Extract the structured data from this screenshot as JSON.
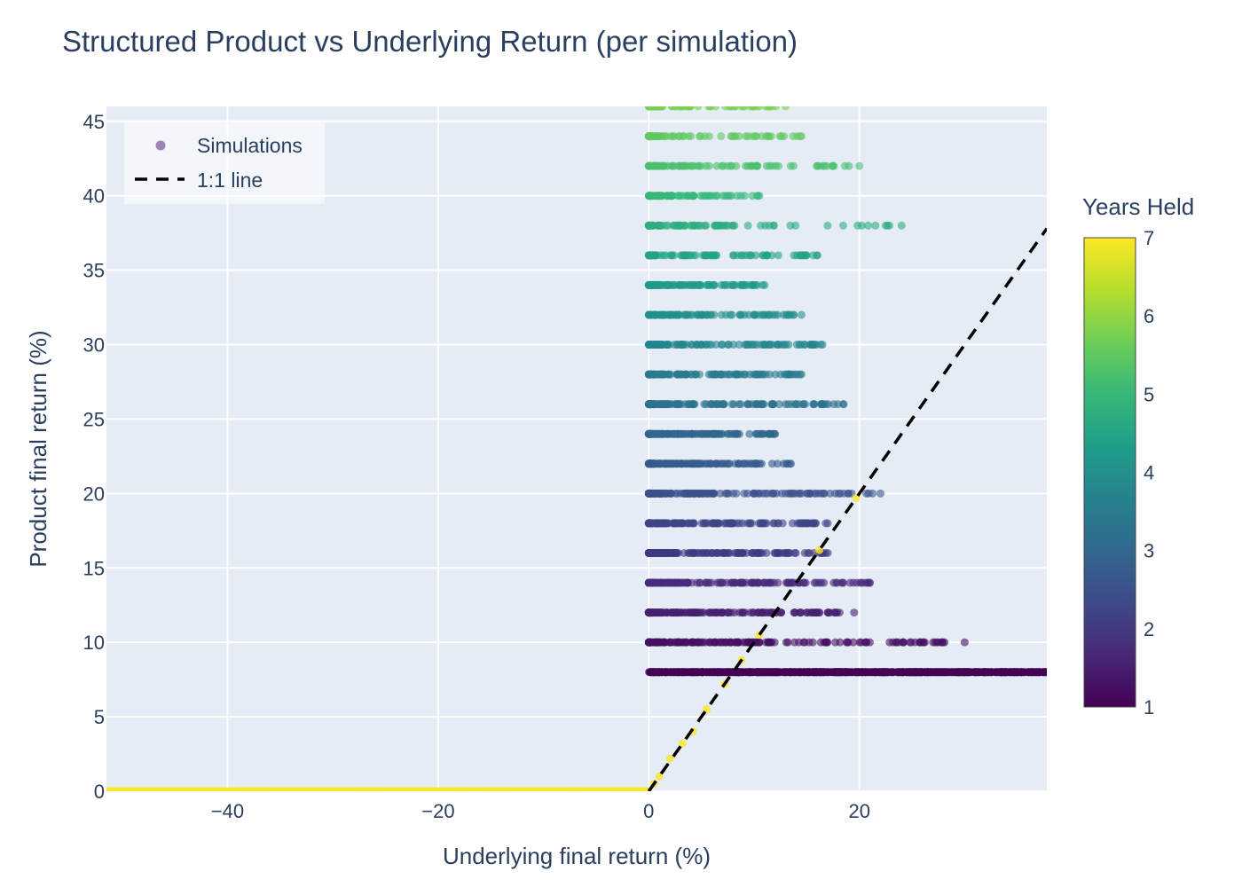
{
  "chart_data": {
    "type": "scatter",
    "title": "Structured Product vs Underlying Return (per simulation)",
    "xlabel": "Underlying final return (%)",
    "ylabel": "Product final return (%)",
    "xlim": [
      -51.5,
      37.8
    ],
    "ylim": [
      0,
      46
    ],
    "x_ticks": [
      -40,
      -20,
      0,
      20
    ],
    "x_tick_labels": [
      "−40",
      "−20",
      "0",
      "20"
    ],
    "y_ticks": [
      0,
      5,
      10,
      15,
      20,
      25,
      30,
      35,
      40,
      45
    ],
    "y_tick_labels": [
      "0",
      "5",
      "10",
      "15",
      "20",
      "25",
      "30",
      "35",
      "40",
      "45"
    ],
    "grid": true,
    "plot_background": "#e5ecf6",
    "legend": {
      "position": "top-left",
      "entries": [
        {
          "label": "Simulations",
          "symbol": "dot",
          "color": "#7b4f9d"
        },
        {
          "label": "1:1 line",
          "symbol": "dash",
          "color": "#000000"
        }
      ]
    },
    "colorbar": {
      "title": "Years Held",
      "range": [
        1,
        7
      ],
      "ticks": [
        "1",
        "2",
        "3",
        "4",
        "5",
        "6",
        "7"
      ],
      "colorscale": "Viridis",
      "stops": [
        "#440154",
        "#482878",
        "#3e4989",
        "#31688e",
        "#26828e",
        "#1f9e89",
        "#35b779",
        "#6ece58",
        "#b5de2b",
        "#fde725"
      ]
    },
    "series": [
      {
        "name": "Simulations",
        "marker": "circle",
        "bands": [
          {
            "y": 8,
            "years": 1,
            "x_range": [
              0,
              37.8
            ]
          },
          {
            "y": 10,
            "years": 1.25,
            "x_range": [
              0,
              30
            ]
          },
          {
            "y": 12,
            "years": 1.5,
            "x_range": [
              0,
              19.5
            ]
          },
          {
            "y": 14,
            "years": 1.75,
            "x_range": [
              0,
              21
            ]
          },
          {
            "y": 16,
            "years": 2,
            "x_range": [
              0,
              17
            ]
          },
          {
            "y": 18,
            "years": 2.25,
            "x_range": [
              0,
              17
            ]
          },
          {
            "y": 20,
            "years": 2.5,
            "x_range": [
              0,
              22
            ]
          },
          {
            "y": 22,
            "years": 2.75,
            "x_range": [
              0,
              13.5
            ]
          },
          {
            "y": 24,
            "years": 3,
            "x_range": [
              0,
              12
            ]
          },
          {
            "y": 26,
            "years": 3.25,
            "x_range": [
              0,
              18.5
            ]
          },
          {
            "y": 28,
            "years": 3.5,
            "x_range": [
              0,
              14.5
            ]
          },
          {
            "y": 30,
            "years": 3.75,
            "x_range": [
              0,
              16.5
            ]
          },
          {
            "y": 32,
            "years": 4,
            "x_range": [
              0,
              14.5
            ]
          },
          {
            "y": 34,
            "years": 4.25,
            "x_range": [
              0,
              11
            ]
          },
          {
            "y": 36,
            "years": 4.5,
            "x_range": [
              0,
              16
            ]
          },
          {
            "y": 38,
            "years": 4.75,
            "x_range": [
              0,
              24
            ]
          },
          {
            "y": 40,
            "years": 5,
            "x_range": [
              0,
              10.5
            ]
          },
          {
            "y": 42,
            "years": 5.25,
            "x_range": [
              0,
              20
            ]
          },
          {
            "y": 44,
            "years": 5.5,
            "x_range": [
              0,
              14.5
            ]
          },
          {
            "y": 46,
            "years": 5.75,
            "x_range": [
              0,
              13
            ]
          }
        ],
        "points_years_7": [
          {
            "x": -51.5,
            "y": 0
          },
          {
            "x": -40,
            "y": 0
          },
          {
            "x": -20,
            "y": 0
          },
          {
            "x": -5,
            "y": 0
          },
          {
            "x": 0.5,
            "y": 0.5
          },
          {
            "x": 1,
            "y": 1
          },
          {
            "x": 2,
            "y": 2.2
          },
          {
            "x": 3.2,
            "y": 3.2
          },
          {
            "x": 4.2,
            "y": 4
          },
          {
            "x": 5.5,
            "y": 5.5
          },
          {
            "x": 7.2,
            "y": 7.2
          },
          {
            "x": 8.8,
            "y": 8.8
          },
          {
            "x": 10.5,
            "y": 10.5
          },
          {
            "x": 16.2,
            "y": 16.2
          },
          {
            "x": 19.7,
            "y": 19.7
          }
        ]
      },
      {
        "name": "1:1 line",
        "type": "line",
        "dash": true,
        "color": "#000000",
        "points": [
          {
            "x": 0,
            "y": 0
          },
          {
            "x": 37.8,
            "y": 37.8
          }
        ]
      }
    ]
  }
}
